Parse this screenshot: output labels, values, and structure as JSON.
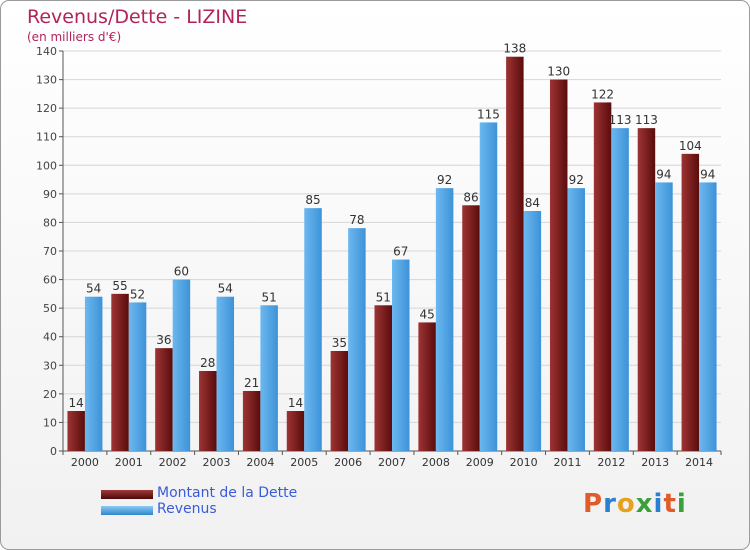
{
  "header": {
    "title": "Revenus/Dette - LIZINE",
    "subtitle": "(en milliers d'€)"
  },
  "legend": {
    "items": [
      {
        "label": "Montant de la Dette",
        "color": "#7a1c1c"
      },
      {
        "label": "Revenus",
        "color": "#4aa3e6"
      }
    ]
  },
  "logo": {
    "letters": [
      "P",
      "r",
      "o",
      "x",
      "i",
      "t",
      "i"
    ],
    "colors": [
      "#e05a2a",
      "#2a7fd0",
      "#e8a020",
      "#3aa03a",
      "#2a7fd0",
      "#e05a2a",
      "#3aa03a"
    ]
  },
  "chart_data": {
    "type": "bar",
    "title": "Revenus/Dette - LIZINE",
    "ylabel": "(en milliers d'€)",
    "ylim": [
      0,
      140
    ],
    "yticks": [
      0,
      10,
      20,
      30,
      40,
      50,
      60,
      70,
      80,
      90,
      100,
      110,
      120,
      130,
      140
    ],
    "grid": true,
    "legend_position": "bottom-left",
    "categories": [
      "2000",
      "2001",
      "2002",
      "2003",
      "2004",
      "2005",
      "2006",
      "2007",
      "2008",
      "2009",
      "2010",
      "2011",
      "2012",
      "2013",
      "2014"
    ],
    "series": [
      {
        "name": "Montant de la Dette",
        "color": "#7a1c1c",
        "values": [
          14,
          55,
          36,
          28,
          21,
          14,
          35,
          51,
          45,
          86,
          138,
          130,
          122,
          113,
          104
        ]
      },
      {
        "name": "Revenus",
        "color": "#4aa3e6",
        "values": [
          54,
          52,
          60,
          54,
          51,
          85,
          78,
          67,
          92,
          115,
          84,
          92,
          113,
          94,
          94
        ]
      }
    ]
  }
}
